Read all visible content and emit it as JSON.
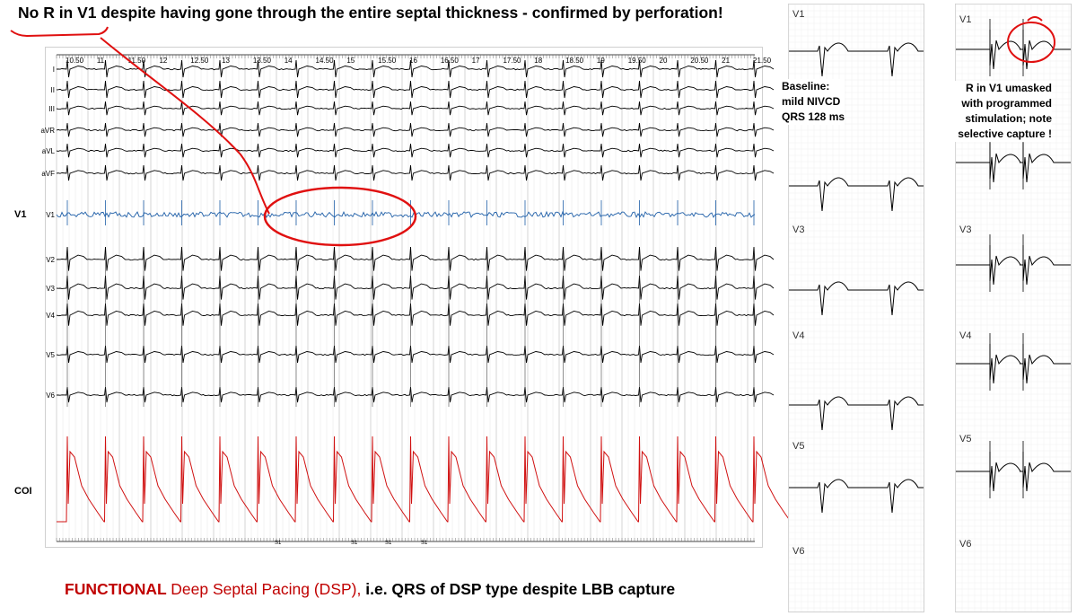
{
  "title": "No R in V1 despite having gone through the entire septal thickness -  confirmed by perforation!",
  "caption": {
    "functional": "FUNCTIONAL",
    "dsp": "Deep Septal Pacing (DSP),",
    "rest": "i.e. QRS of DSP type despite LBB capture"
  },
  "main_panel": {
    "time_ticks": [
      "10.50",
      "11",
      "11.50",
      "12",
      "12.50",
      "13",
      "13.50",
      "14",
      "14.50",
      "15",
      "15.50",
      "16",
      "16.50",
      "17",
      "17.50",
      "18",
      "18.50",
      "19",
      "19.50",
      "20",
      "20.50",
      "21",
      "21.50"
    ],
    "lead_labels": [
      "I",
      "II",
      "III",
      "aVR",
      "aVL",
      "aVF",
      "V1",
      "V2",
      "V3",
      "V4",
      "V5",
      "V6"
    ],
    "side_v1": "V1",
    "side_coi": "COI",
    "stim_markers": [
      "S1",
      "S1",
      "S1",
      "S1"
    ]
  },
  "baseline_panel": {
    "leads": [
      "V1",
      "V3",
      "V4",
      "V5",
      "V6"
    ],
    "annotation": [
      "Baseline:",
      "mild NIVCD",
      "QRS 128 ms"
    ]
  },
  "stim_panel": {
    "leads": [
      "V1",
      "V3",
      "V4",
      "V5",
      "V6"
    ],
    "annotation": [
      "R in V1 umasked",
      "with programmed",
      "stimulation; note",
      "selective capture !"
    ]
  },
  "colors": {
    "trace": "#000000",
    "v1_trace": "#1f5fa8",
    "coi_trace": "#d01010",
    "annotation": "#e01010",
    "grid": "#c9c9c9"
  }
}
